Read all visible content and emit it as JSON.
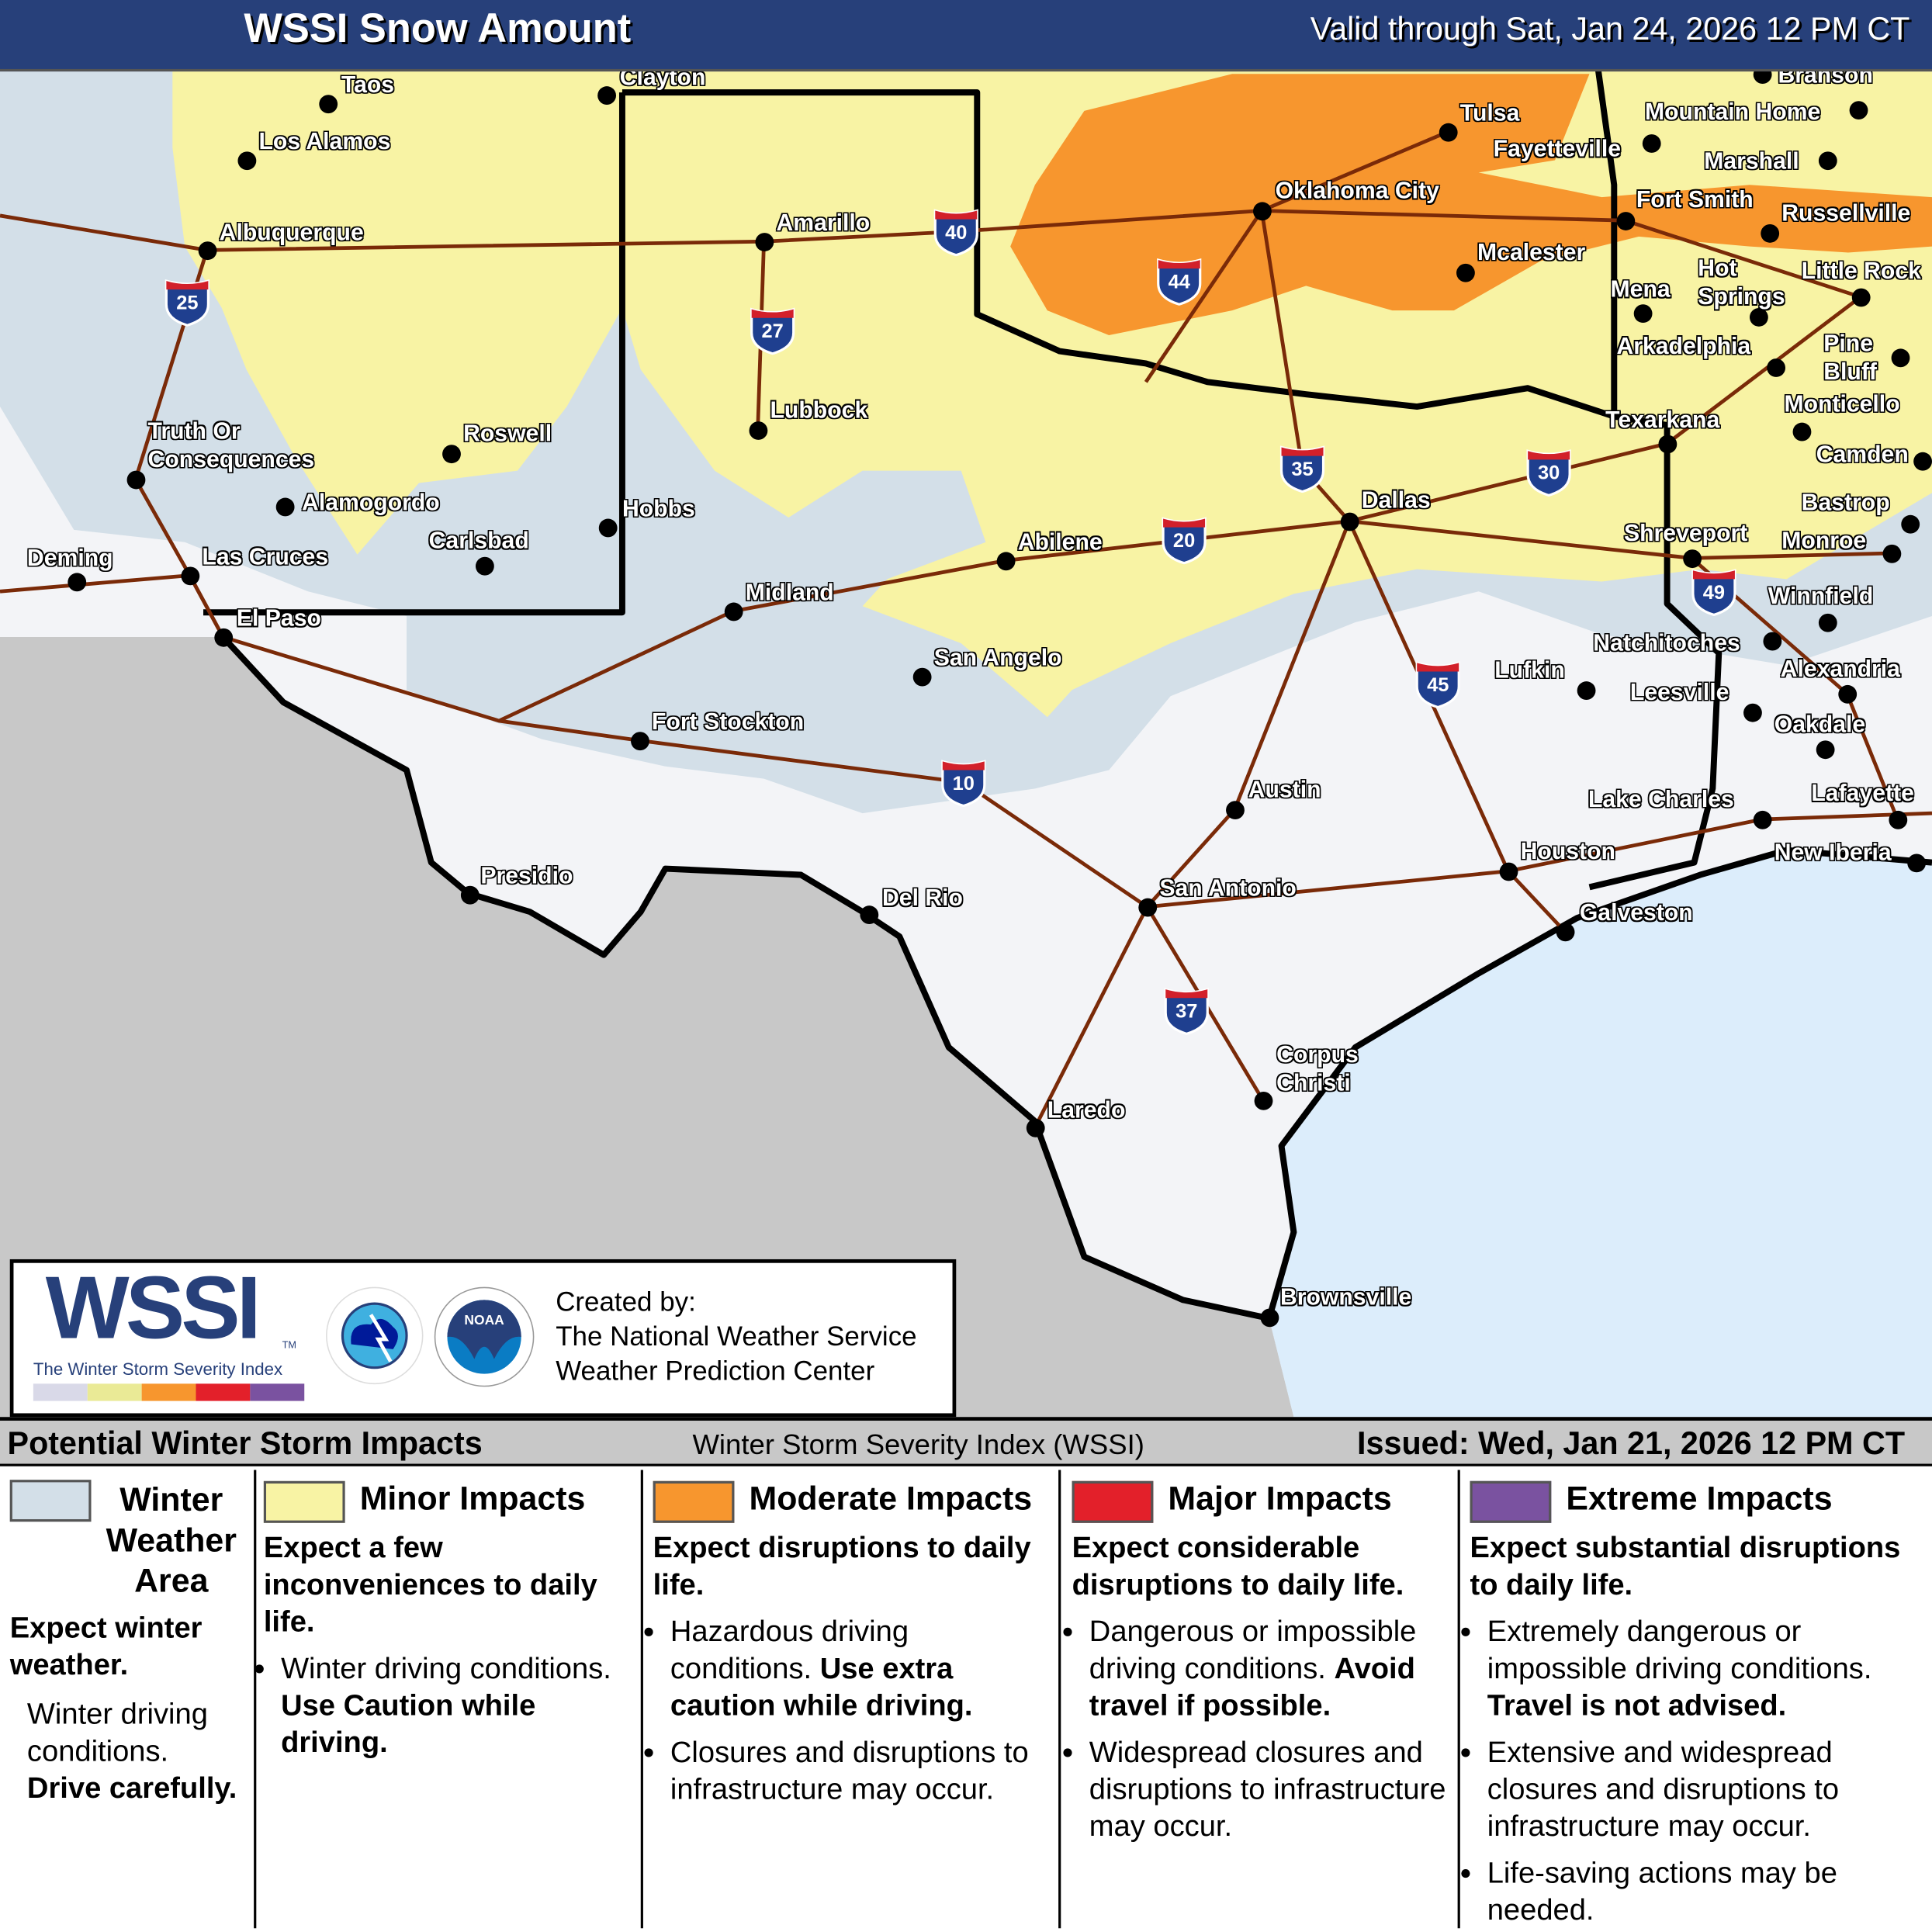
{
  "header": {
    "title": "WSSI Snow Amount",
    "valid": "Valid through Sat, Jan 24, 2026 12 PM CT"
  },
  "colors": {
    "header": "#27407a",
    "winter_weather": "#d3dfe8",
    "minor": "#f8f3a4",
    "moderate": "#f7962e",
    "major": "#e3202a",
    "extreme": "#7a52a0",
    "water": "#dcedfb",
    "mexico": "#c8c8c8",
    "roads": "#7a2a08"
  },
  "cities": [
    "Taos",
    "Los Alamos",
    "Albuquerque",
    "Clayton",
    "Amarillo",
    "Lubbock",
    "Roswell",
    "Truth Or\nConsequences",
    "Alamogordo",
    "Carlsbad",
    "Hobbs",
    "Deming",
    "Las Cruces",
    "El Paso",
    "Midland",
    "Abilene",
    "San Angelo",
    "Fort Stockton",
    "Presidio",
    "Del Rio",
    "Austin",
    "San Antonio",
    "Laredo",
    "Corpus\nChristi",
    "Brownsville",
    "Houston",
    "Galveston",
    "Lake Charles",
    "Lafayette",
    "New Iberia",
    "Lufkin",
    "Leesville",
    "Oakdale",
    "Alexandria",
    "Natchitoches",
    "Winnfield",
    "Shreveport",
    "Monroe",
    "Bastrop",
    "Camden",
    "Monticello",
    "Pine\nBluff",
    "Texarkana",
    "Dallas",
    "Arkadelphia",
    "Hot\nSprings",
    "Mena",
    "Little Rock",
    "Russellville",
    "Fort Smith",
    "Mcalester",
    "Oklahoma City",
    "Tulsa",
    "Fayetteville",
    "Marshall",
    "Mountain Home",
    "Branson"
  ],
  "interstates": [
    "25",
    "40",
    "27",
    "44",
    "35",
    "30",
    "20",
    "49",
    "45",
    "10",
    "37"
  ],
  "logo": {
    "wssi": "WSSI",
    "tm": "TM",
    "subtitle": "The Winter Storm Severity Index",
    "nws": "NATIONAL WEATHER SERVICE",
    "noaa": "NOAA",
    "credit": "Created by:\nThe National Weather Service\nWeather Prediction Center"
  },
  "legend": {
    "title": "Potential Winter Storm Impacts",
    "index": "Winter Storm Severity Index (WSSI)",
    "issued": "Issued: Wed, Jan 21, 2026 12 PM CT",
    "categories": [
      {
        "name": "Winter\nWeather\nArea",
        "summary": "Expect winter weather.",
        "details": "Winter driving conditions.",
        "emph": "Drive carefully."
      },
      {
        "name": "Minor Impacts",
        "summary": "Expect a few inconveniences to daily life.",
        "bullets": [
          "Winter driving conditions."
        ],
        "emph": "Use Caution while driving."
      },
      {
        "name": "Moderate Impacts",
        "summary": "Expect disruptions to daily life.",
        "bullets": [
          "Hazardous driving conditions.",
          "Closures and disruptions to infrastructure may occur."
        ],
        "emph": "Use extra caution while driving."
      },
      {
        "name": "Major Impacts",
        "summary": "Expect considerable disruptions to daily life.",
        "bullets": [
          "Dangerous or impossible driving conditions.",
          "Widespread closures and disruptions to infrastructure may occur."
        ],
        "emph": "Avoid travel if possible."
      },
      {
        "name": "Extreme Impacts",
        "summary": "Expect substantial disruptions to daily life.",
        "bullets": [
          "Extremely dangerous or impossible driving conditions.",
          "Extensive and widespread closures and disruptions to infrastructure may occur.",
          "Life-saving actions may be needed."
        ],
        "emph": "Travel is not advised."
      }
    ]
  }
}
